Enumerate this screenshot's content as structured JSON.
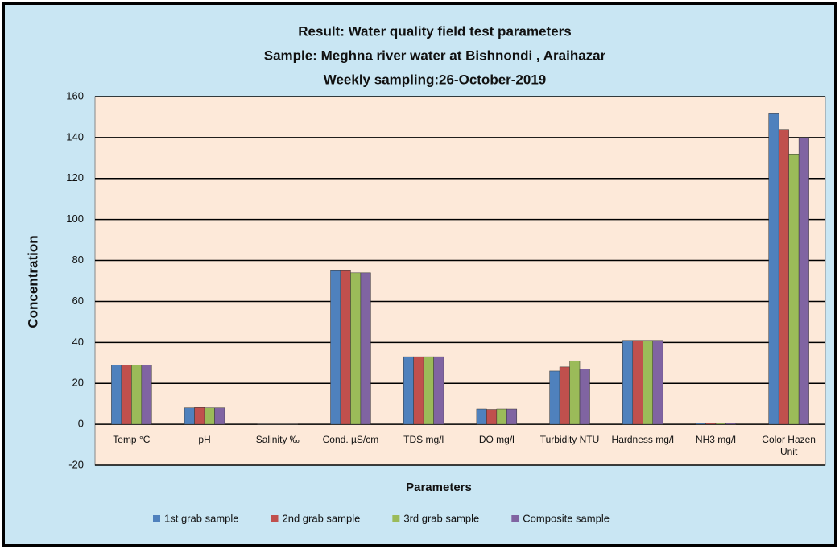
{
  "chart_data": {
    "type": "bar",
    "title": "Result: Water quality field test parameters",
    "subtitle": "Sample: Meghna river water at Bishnondi , Araihazar",
    "subtitle2": "Weekly sampling:26-October-2019",
    "ylabel": "Concentration",
    "xlabel": "Parameters",
    "categories": [
      "Temp °C",
      "pH",
      "Salinity ‰",
      "Cond. µS/cm",
      "TDS mg/l",
      "DO mg/l",
      "Turbidity NTU",
      "Hardness mg/l",
      "NH3 mg/l",
      "Color Hazen Unit"
    ],
    "series": [
      {
        "name": "1st grab sample",
        "color": "#4f81bd",
        "values": [
          29,
          8,
          0.1,
          75,
          33,
          7.5,
          26,
          41,
          0.5,
          152
        ]
      },
      {
        "name": "2nd grab sample",
        "color": "#c0504d",
        "values": [
          29,
          8.2,
          0.1,
          75,
          33,
          7.3,
          28,
          41,
          0.5,
          144
        ]
      },
      {
        "name": "3rd grab sample",
        "color": "#9bbb59",
        "values": [
          29,
          8,
          0.1,
          74,
          33,
          7.5,
          31,
          41,
          0.5,
          132
        ]
      },
      {
        "name": "Composite sample",
        "color": "#8064a2",
        "values": [
          29,
          8,
          0.1,
          74,
          33,
          7.5,
          27,
          41,
          0.5,
          140
        ]
      }
    ],
    "ylim": [
      -20,
      160
    ],
    "yticks": [
      -20,
      0,
      20,
      40,
      60,
      80,
      100,
      120,
      140,
      160
    ],
    "grid": true,
    "legend": "bottom"
  }
}
